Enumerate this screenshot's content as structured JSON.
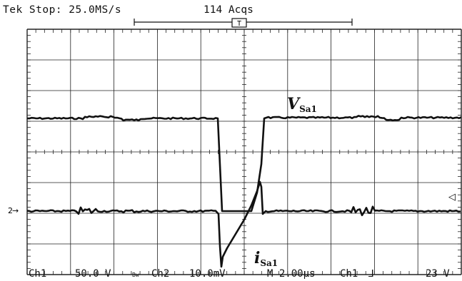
{
  "header": {
    "status": "Tek Stop: 25.0MS/s",
    "acquisitions": "114 Acqs",
    "trigger_marker": "T"
  },
  "trace_labels": {
    "voltage": {
      "main": "V",
      "sub": "Sa1"
    },
    "current": {
      "main": "i",
      "sub": "Sa1"
    }
  },
  "markers": {
    "ch2_ground": "2",
    "trigger_level_arrow": "◁"
  },
  "footer": {
    "ch1_label": "Ch1",
    "ch1_scale": "50.0 V",
    "bandwidth_mark": "Bw",
    "ch2_label": "Ch2",
    "ch2_scale": "10.0mV",
    "timebase": "M 2.00μs",
    "trigger_source": "Ch1",
    "trigger_slope": "⅃",
    "trigger_level": "23 V"
  },
  "colors": {
    "trace": "#111111",
    "grid": "#222222",
    "background": "#ffffff"
  }
}
